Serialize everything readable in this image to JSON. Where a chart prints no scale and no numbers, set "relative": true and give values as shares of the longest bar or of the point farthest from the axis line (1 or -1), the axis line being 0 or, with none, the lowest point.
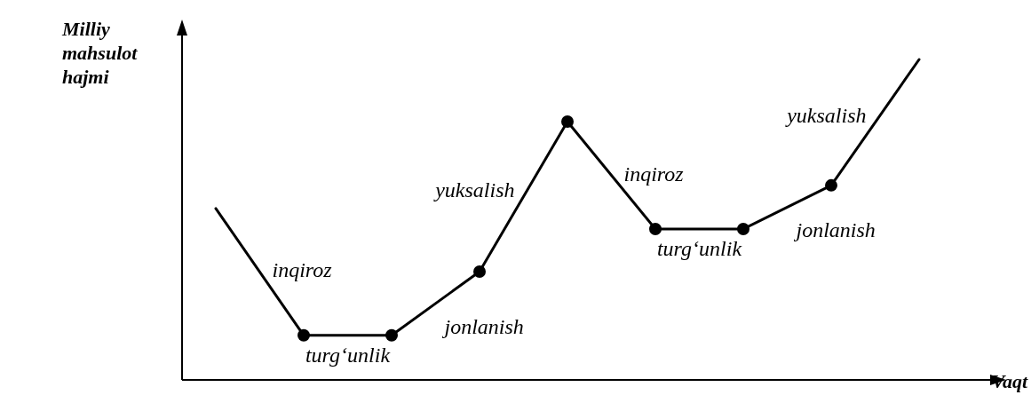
{
  "chart_data": {
    "type": "line",
    "relative": true,
    "xlabel": "Vaqt",
    "ylabel": "Milliy mahsulot hajmi",
    "marker": "circle",
    "categories": [
      null,
      null,
      null,
      null,
      null,
      null,
      null,
      null,
      null
    ],
    "series": [
      {
        "color": "#000000",
        "values": [
          0.535,
          0.139,
          0.139,
          0.338,
          0.806,
          0.471,
          0.471,
          0.607,
          1
        ]
      }
    ],
    "annotations": [
      "inqiroz",
      "turg‘unlik",
      "jonlanish",
      "yuksalish",
      "inqiroz",
      "turg‘unlik",
      "jonlanish",
      "yuksalish"
    ]
  }
}
